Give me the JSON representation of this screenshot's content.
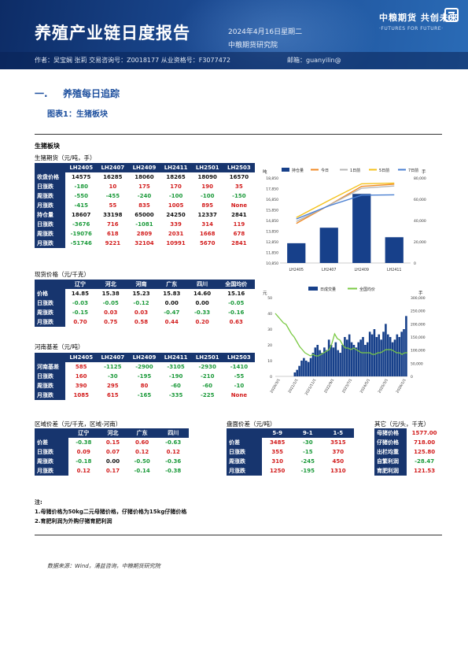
{
  "header": {
    "title": "养殖产业链日度报告",
    "date": "2024年4月16日星期二",
    "org": "中粮期货研究院",
    "logo_cn": "中粮期货 共创未来",
    "logo_en": "·FUTURES FOR FUTURE·",
    "author": "作者：吴宝娴  张莉  交易咨询号：Z0018177 从业资格号：F3077472",
    "email": "邮箱：guanyilin@"
  },
  "section": {
    "num": "一.",
    "title": "养殖每日追踪"
  },
  "figure_title": "图表1：生猪板块",
  "block_title": "生猪板块",
  "futures": {
    "caption": "生猪期货（元/吨，手）",
    "headers": [
      "",
      "LH2405",
      "LH2407",
      "LH2409",
      "LH2411",
      "LH2501",
      "LH2503"
    ],
    "rows": [
      {
        "label": "收盘价格",
        "cells": [
          "14575",
          "16285",
          "18060",
          "18265",
          "18090",
          "16570"
        ],
        "color": "blk-c"
      },
      {
        "label": "日涨跌",
        "cells": [
          "-180",
          "10",
          "175",
          "170",
          "190",
          "35"
        ],
        "colors": [
          "grn",
          "red",
          "red",
          "red",
          "red",
          "red"
        ]
      },
      {
        "label": "周涨跌",
        "cells": [
          "-550",
          "-455",
          "-240",
          "-100",
          "-100",
          "-150"
        ],
        "colors": [
          "grn",
          "grn",
          "grn",
          "grn",
          "grn",
          "grn"
        ]
      },
      {
        "label": "月涨跌",
        "cells": [
          "-415",
          "55",
          "835",
          "1005",
          "895",
          "None"
        ],
        "colors": [
          "grn",
          "red",
          "red",
          "red",
          "red",
          "red"
        ]
      },
      {
        "label": "持仓量",
        "cells": [
          "18607",
          "33198",
          "65000",
          "24250",
          "12337",
          "2841"
        ],
        "color": "blk-c"
      },
      {
        "label": "日涨跌",
        "cells": [
          "-3676",
          "716",
          "-1081",
          "339",
          "314",
          "119"
        ],
        "colors": [
          "grn",
          "red",
          "grn",
          "red",
          "red",
          "red"
        ]
      },
      {
        "label": "周涨跌",
        "cells": [
          "-19076",
          "618",
          "2809",
          "2031",
          "1668",
          "678"
        ],
        "colors": [
          "grn",
          "red",
          "red",
          "red",
          "red",
          "red"
        ]
      },
      {
        "label": "月涨跌",
        "cells": [
          "-51746",
          "9221",
          "32104",
          "10991",
          "5670",
          "2841"
        ],
        "colors": [
          "grn",
          "red",
          "red",
          "red",
          "red",
          "red"
        ]
      }
    ]
  },
  "spot": {
    "caption": "现货价格（元/千克）",
    "headers": [
      "",
      "辽宁",
      "河北",
      "河南",
      "广东",
      "四川",
      "全国均价"
    ],
    "rows": [
      {
        "label": "价格",
        "cells": [
          "14.85",
          "15.38",
          "15.23",
          "15.83",
          "14.60",
          "15.16"
        ],
        "color": "blk-c"
      },
      {
        "label": "日涨跌",
        "cells": [
          "-0.03",
          "-0.05",
          "-0.12",
          "0.00",
          "0.00",
          "-0.05"
        ],
        "colors": [
          "grn",
          "grn",
          "grn",
          "blk-c",
          "blk-c",
          "grn"
        ]
      },
      {
        "label": "周涨跌",
        "cells": [
          "-0.15",
          "0.03",
          "0.03",
          "-0.47",
          "-0.33",
          "-0.16"
        ],
        "colors": [
          "grn",
          "red",
          "red",
          "grn",
          "grn",
          "grn"
        ]
      },
      {
        "label": "月涨跌",
        "cells": [
          "0.70",
          "0.75",
          "0.58",
          "0.44",
          "0.20",
          "0.63"
        ],
        "colors": [
          "red",
          "red",
          "red",
          "red",
          "red",
          "red"
        ]
      }
    ]
  },
  "basis": {
    "caption": "河南基差（元/吨）",
    "headers": [
      "",
      "LH2405",
      "LH2407",
      "LH2409",
      "LH2411",
      "LH2501",
      "LH2503"
    ],
    "rows": [
      {
        "label": "河南基差",
        "cells": [
          "585",
          "-1125",
          "-2900",
          "-3105",
          "-2930",
          "-1410"
        ],
        "colors": [
          "red",
          "grn",
          "grn",
          "grn",
          "grn",
          "grn"
        ]
      },
      {
        "label": "日涨跌",
        "cells": [
          "160",
          "-30",
          "-195",
          "-190",
          "-210",
          "-55"
        ],
        "colors": [
          "red",
          "grn",
          "grn",
          "grn",
          "grn",
          "grn"
        ]
      },
      {
        "label": "周涨跌",
        "cells": [
          "390",
          "295",
          "80",
          "-60",
          "-60",
          "-10"
        ],
        "colors": [
          "red",
          "red",
          "red",
          "grn",
          "grn",
          "grn"
        ]
      },
      {
        "label": "月涨跌",
        "cells": [
          "1085",
          "615",
          "-165",
          "-335",
          "-225",
          "None"
        ],
        "colors": [
          "red",
          "red",
          "grn",
          "grn",
          "grn",
          "red"
        ]
      }
    ]
  },
  "regional": {
    "caption": "区域价差（元/千克，区域-河南）",
    "headers": [
      "",
      "辽宁",
      "河北",
      "广东",
      "四川"
    ],
    "rows": [
      {
        "label": "价差",
        "cells": [
          "-0.38",
          "0.15",
          "0.60",
          "-0.63"
        ],
        "colors": [
          "grn",
          "red",
          "red",
          "grn"
        ]
      },
      {
        "label": "日涨跌",
        "cells": [
          "0.09",
          "0.07",
          "0.12",
          "0.12"
        ],
        "colors": [
          "red",
          "red",
          "red",
          "red"
        ]
      },
      {
        "label": "周涨跌",
        "cells": [
          "-0.18",
          "0.00",
          "-0.50",
          "-0.36"
        ],
        "colors": [
          "grn",
          "blk-c",
          "grn",
          "grn"
        ]
      },
      {
        "label": "月涨跌",
        "cells": [
          "0.12",
          "0.17",
          "-0.14",
          "-0.38"
        ],
        "colors": [
          "red",
          "red",
          "grn",
          "grn"
        ]
      }
    ]
  },
  "spread": {
    "caption": "盘面价差（元/吨）",
    "headers": [
      "",
      "5-9",
      "9-1",
      "1-5"
    ],
    "rows": [
      {
        "label": "价差",
        "cells": [
          "3485",
          "-30",
          "3515"
        ],
        "colors": [
          "red",
          "grn",
          "red"
        ]
      },
      {
        "label": "日涨跌",
        "cells": [
          "355",
          "-15",
          "370"
        ],
        "colors": [
          "red",
          "grn",
          "red"
        ]
      },
      {
        "label": "周涨跌",
        "cells": [
          "310",
          "-245",
          "450"
        ],
        "colors": [
          "red",
          "grn",
          "red"
        ]
      },
      {
        "label": "月涨跌",
        "cells": [
          "1250",
          "-195",
          "1310"
        ],
        "colors": [
          "red",
          "grn",
          "red"
        ]
      }
    ]
  },
  "other": {
    "caption": "其它（元/头，千克）",
    "rows": [
      {
        "label": "母猪价格",
        "value": "1577.00",
        "color": "red"
      },
      {
        "label": "仔猪价格",
        "value": "718.00",
        "color": "red"
      },
      {
        "label": "出栏均重",
        "value": "125.80",
        "color": "red"
      },
      {
        "label": "自繁利润",
        "value": "-28.47",
        "color": "grn"
      },
      {
        "label": "育肥利润",
        "value": "121.53",
        "color": "red"
      }
    ]
  },
  "notes": {
    "head": "注:",
    "line1": "1.母猪价格为50kg二元母猪价格，仔猪价格为15kg仔猪价格",
    "line2": "2.育肥利润为外购仔猪育肥利润"
  },
  "source": "数据来源：Wind，涌益咨询，中粮期货研究院",
  "chart_data": [
    {
      "type": "bar",
      "categories": [
        "LH2405",
        "LH2407",
        "LH2409",
        "LH2411"
      ],
      "legend": [
        "持仓量",
        "今日",
        "1日前",
        "5日前",
        "7日前"
      ],
      "series": [
        {
          "name": "持仓量",
          "values": [
            18607,
            33198,
            65000,
            24250
          ],
          "axis": "right",
          "color": "#17408a"
        },
        {
          "name": "今日",
          "values": [
            14575,
            16285,
            18060,
            18265
          ],
          "color": "#f08a24"
        },
        {
          "name": "1日前",
          "values": [
            14755,
            16275,
            17885,
            18095
          ],
          "color": "#b7b7b7"
        },
        {
          "name": "5日前",
          "values": [
            15125,
            16740,
            18300,
            18365
          ],
          "color": "#f4c21c"
        },
        {
          "name": "7日前",
          "values": [
            14990,
            16230,
            17225,
            17260
          ],
          "color": "#4a7fd1"
        }
      ],
      "left_axis": {
        "ticks": [
          "18,850",
          "17,850",
          "16,850",
          "15,850",
          "14,850",
          "13,850",
          "12,850",
          "11,850",
          "10,850"
        ],
        "ylim": [
          10850,
          18850
        ]
      },
      "right_axis": {
        "label": "手",
        "ticks": [
          "80,000",
          "60,000",
          "40,000",
          "20,000",
          "0"
        ],
        "ylim": [
          0,
          80000
        ]
      },
      "left_label": "吨"
    },
    {
      "type": "bar",
      "legend": [
        "日成交量",
        "全国均价"
      ],
      "x_ticks": [
        "2020/3/1",
        "2021/1/1",
        "2021/11/1",
        "2022/9/1",
        "2023/7/1",
        "2024/5/1",
        "2025/3/1",
        "2026/1/1"
      ],
      "left_axis": {
        "ticks": [
          "50",
          "40",
          "30",
          "20",
          "10",
          "0"
        ],
        "ylim": [
          0,
          50
        ]
      },
      "right_axis": {
        "label": "手",
        "ticks": [
          "300,000",
          "250,000",
          "200,000",
          "150,000",
          "100,000",
          "50,000",
          "0"
        ],
        "ylim": [
          0,
          300000
        ]
      },
      "left_label": "元",
      "series": [
        {
          "name": "全国均价",
          "color": "#7ac943",
          "values": [
            40,
            38,
            36,
            34,
            33,
            30,
            27,
            25,
            22,
            19,
            17,
            15,
            14,
            13,
            14,
            13,
            13,
            14,
            15,
            16,
            17,
            21,
            27,
            24,
            23,
            20,
            18,
            18,
            17,
            18,
            17,
            16,
            15,
            15,
            15,
            15,
            14,
            14,
            15,
            15,
            16,
            17,
            17,
            17,
            16,
            15,
            15,
            14,
            15,
            15
          ]
        },
        {
          "name": "日成交量",
          "color": "#17408a",
          "values": [
            15000,
            25000,
            40000,
            60000,
            70000,
            60000,
            55000,
            70000,
            90000,
            110000,
            120000,
            100000,
            90000,
            110000,
            100000,
            140000,
            120000,
            110000,
            130000,
            100000,
            90000,
            120000,
            150000,
            140000,
            160000,
            130000,
            120000,
            110000,
            130000,
            140000,
            150000,
            120000,
            130000,
            170000,
            160000,
            180000,
            150000,
            160000,
            140000,
            170000,
            200000,
            160000,
            150000,
            130000,
            140000,
            160000,
            150000,
            170000,
            180000,
            230000
          ]
        }
      ]
    }
  ]
}
